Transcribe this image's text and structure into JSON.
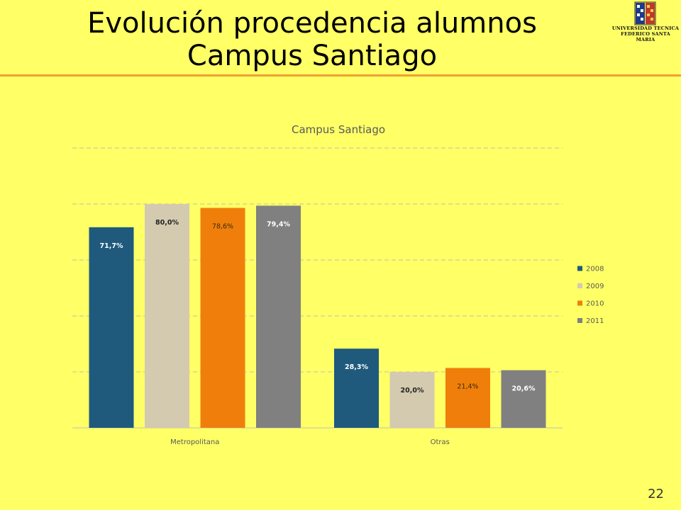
{
  "slide": {
    "title_line1": "Evolución procedencia alumnos",
    "title_line2": "Campus Santiago",
    "page_number": "22",
    "logo_line1": "UNIVERSIDAD TECNICA",
    "logo_line2": "FEDERICO SANTA MARIA"
  },
  "chart_data": {
    "type": "bar",
    "title": "Campus Santiago",
    "categories": [
      "Metropolitana",
      "Otras"
    ],
    "series": [
      {
        "name": "2008",
        "values": [
          71.7,
          28.3
        ],
        "labels": [
          "71,7%",
          "28,3%"
        ],
        "color": "#1F5A7D"
      },
      {
        "name": "2009",
        "values": [
          80.0,
          20.0
        ],
        "labels": [
          "80,0%",
          "20,0%"
        ],
        "color": "#D3CAB0"
      },
      {
        "name": "2010",
        "values": [
          78.6,
          21.4
        ],
        "labels": [
          "78,6%",
          "21,4%"
        ],
        "color": "#EF7F0A"
      },
      {
        "name": "2011",
        "values": [
          79.4,
          20.6
        ],
        "labels": [
          "79,4%",
          "20,6%"
        ],
        "color": "#808080"
      }
    ],
    "ylim": [
      0,
      100
    ],
    "grid": true,
    "legend": "right"
  }
}
